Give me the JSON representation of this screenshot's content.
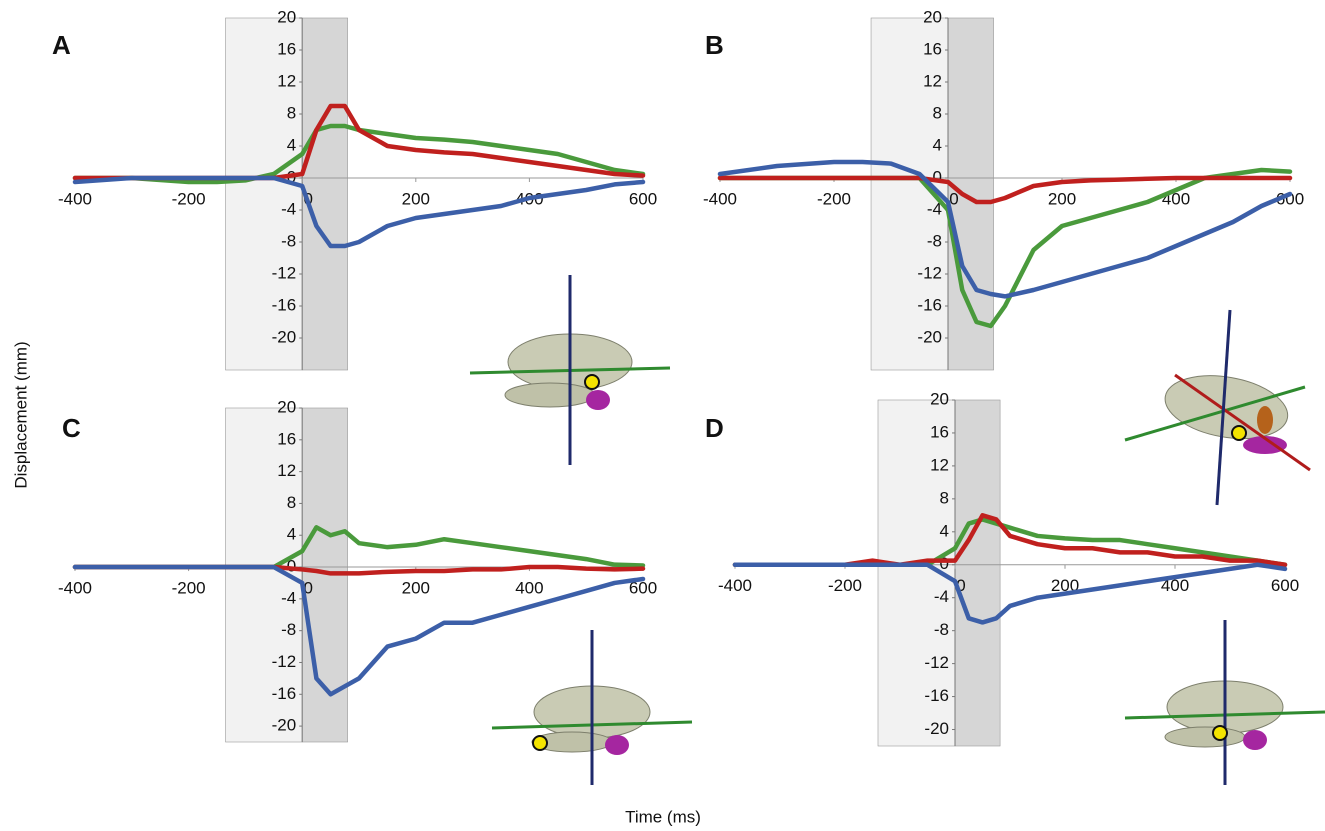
{
  "figure": {
    "ylabel": "Displacement (mm)",
    "xlabel": "Time (ms)"
  },
  "chart_data": [
    {
      "type": "line",
      "panel_label": "A",
      "x": [
        -400,
        -300,
        -200,
        -150,
        -100,
        -50,
        0,
        25,
        50,
        75,
        100,
        150,
        200,
        250,
        300,
        350,
        400,
        450,
        500,
        550,
        600
      ],
      "series": [
        {
          "color": "#4a9a3c",
          "values": [
            0,
            0,
            -0.5,
            -0.5,
            -0.3,
            0.5,
            3,
            6,
            6.5,
            6.5,
            6,
            5.5,
            5,
            4.8,
            4.5,
            4,
            3.5,
            3,
            2,
            1,
            0.5
          ]
        },
        {
          "color": "#c0201e",
          "values": [
            0,
            0,
            0,
            0,
            0,
            0,
            0.5,
            6,
            9,
            9,
            6,
            4,
            3.5,
            3.2,
            3,
            2.5,
            2,
            1.5,
            1,
            0.5,
            0.3
          ]
        },
        {
          "color": "#3c5fa8",
          "values": [
            -0.5,
            0,
            0,
            0,
            0,
            0,
            -1,
            -6,
            -8.5,
            -8.5,
            -8,
            -6,
            -5,
            -4.5,
            -4,
            -3.5,
            -2.5,
            -2,
            -1.5,
            -0.8,
            -0.5
          ]
        }
      ],
      "xlim": [
        -400,
        600
      ],
      "ylim": [
        -24,
        20
      ],
      "xticks": [
        -400,
        -200,
        0,
        200,
        400,
        600
      ],
      "yticks": [
        -20,
        -16,
        -12,
        -8,
        -4,
        0,
        4,
        8,
        12,
        16,
        20
      ],
      "shaded": [
        {
          "from": -135,
          "to": 0,
          "color": "#f2f2f2"
        },
        {
          "from": 0,
          "to": 80,
          "color": "#d6d6d6"
        }
      ]
    },
    {
      "type": "line",
      "panel_label": "B",
      "x": [
        -400,
        -300,
        -200,
        -150,
        -100,
        -50,
        0,
        25,
        50,
        75,
        100,
        150,
        200,
        250,
        300,
        350,
        400,
        450,
        500,
        550,
        600
      ],
      "series": [
        {
          "color": "#4a9a3c",
          "values": [
            0,
            0,
            0,
            0,
            0,
            0,
            -4,
            -14,
            -18,
            -18.5,
            -16,
            -9,
            -6,
            -5,
            -4,
            -3,
            -1.5,
            0,
            0.5,
            1,
            0.8
          ]
        },
        {
          "color": "#c0201e",
          "values": [
            0,
            0,
            0,
            0,
            0,
            0,
            -0.5,
            -2,
            -3,
            -3,
            -2.5,
            -1,
            -0.5,
            -0.3,
            -0.2,
            -0.1,
            0,
            0,
            0,
            0,
            0
          ]
        },
        {
          "color": "#3c5fa8",
          "values": [
            0.5,
            1.5,
            2,
            2,
            1.8,
            0.5,
            -3,
            -11,
            -14,
            -14.5,
            -14.8,
            -14,
            -13,
            -12,
            -11,
            -10,
            -8.5,
            -7,
            -5.5,
            -3.5,
            -2
          ]
        }
      ],
      "xlim": [
        -400,
        600
      ],
      "ylim": [
        -24,
        20
      ],
      "xticks": [
        -400,
        -200,
        0,
        200,
        400,
        600
      ],
      "yticks": [
        -20,
        -16,
        -12,
        -8,
        -4,
        0,
        4,
        8,
        12,
        16,
        20
      ],
      "shaded": [
        {
          "from": -135,
          "to": 0,
          "color": "#f2f2f2"
        },
        {
          "from": 0,
          "to": 80,
          "color": "#d6d6d6"
        }
      ]
    },
    {
      "type": "line",
      "panel_label": "C",
      "x": [
        -400,
        -300,
        -200,
        -150,
        -100,
        -50,
        0,
        25,
        50,
        75,
        100,
        150,
        200,
        250,
        300,
        350,
        400,
        450,
        500,
        550,
        600
      ],
      "series": [
        {
          "color": "#4a9a3c",
          "values": [
            0,
            0,
            0,
            0,
            0,
            0,
            2,
            5,
            4,
            4.5,
            3,
            2.5,
            2.8,
            3.5,
            3,
            2.5,
            2,
            1.5,
            1,
            0.3,
            0.2
          ]
        },
        {
          "color": "#c0201e",
          "values": [
            0,
            0,
            0,
            0,
            0,
            0,
            -0.3,
            -0.5,
            -0.8,
            -0.8,
            -0.8,
            -0.6,
            -0.5,
            -0.5,
            -0.3,
            -0.3,
            0,
            0,
            -0.2,
            -0.3,
            -0.2
          ]
        },
        {
          "color": "#3c5fa8",
          "values": [
            0,
            0,
            0,
            0,
            0,
            0,
            -2,
            -14,
            -16,
            -15,
            -14,
            -10,
            -9,
            -7,
            -7,
            -6,
            -5,
            -4,
            -3,
            -2,
            -1.5
          ]
        }
      ],
      "xlim": [
        -400,
        600
      ],
      "ylim": [
        -22,
        20
      ],
      "xticks": [
        -400,
        -200,
        0,
        200,
        400,
        600
      ],
      "yticks": [
        -20,
        -16,
        -12,
        -8,
        -4,
        0,
        4,
        8,
        12,
        16,
        20
      ],
      "shaded": [
        {
          "from": -135,
          "to": 0,
          "color": "#f2f2f2"
        },
        {
          "from": 0,
          "to": 80,
          "color": "#d6d6d6"
        }
      ]
    },
    {
      "type": "line",
      "panel_label": "D",
      "x": [
        -400,
        -300,
        -200,
        -150,
        -100,
        -50,
        0,
        25,
        50,
        75,
        100,
        150,
        200,
        250,
        300,
        350,
        400,
        450,
        500,
        550,
        600
      ],
      "series": [
        {
          "color": "#4a9a3c",
          "values": [
            0,
            0,
            0,
            0,
            0,
            0,
            2,
            5,
            5.5,
            5,
            4.5,
            3.5,
            3.2,
            3,
            3,
            2.5,
            2,
            1.5,
            1,
            0.5,
            0
          ]
        },
        {
          "color": "#c0201e",
          "values": [
            0,
            0,
            0,
            0.5,
            0,
            0.5,
            0.5,
            3,
            6,
            5.5,
            3.5,
            2.5,
            2,
            2,
            1.5,
            1.5,
            1,
            1,
            0.5,
            0.5,
            0
          ]
        },
        {
          "color": "#3c5fa8",
          "values": [
            0,
            0,
            0,
            0,
            0,
            0,
            -2,
            -6.5,
            -7,
            -6.5,
            -5,
            -4,
            -3.5,
            -3,
            -2.5,
            -2,
            -1.5,
            -1,
            -0.5,
            0,
            -0.5
          ]
        }
      ],
      "xlim": [
        -400,
        600
      ],
      "ylim": [
        -22,
        20
      ],
      "xticks": [
        -400,
        -200,
        0,
        200,
        400,
        600
      ],
      "yticks": [
        -20,
        -16,
        -12,
        -8,
        -4,
        0,
        4,
        8,
        12,
        16,
        20
      ],
      "shaded": [
        {
          "from": -140,
          "to": 0,
          "color": "#f2f2f2"
        },
        {
          "from": 0,
          "to": 82,
          "color": "#d6d6d6"
        }
      ]
    }
  ]
}
